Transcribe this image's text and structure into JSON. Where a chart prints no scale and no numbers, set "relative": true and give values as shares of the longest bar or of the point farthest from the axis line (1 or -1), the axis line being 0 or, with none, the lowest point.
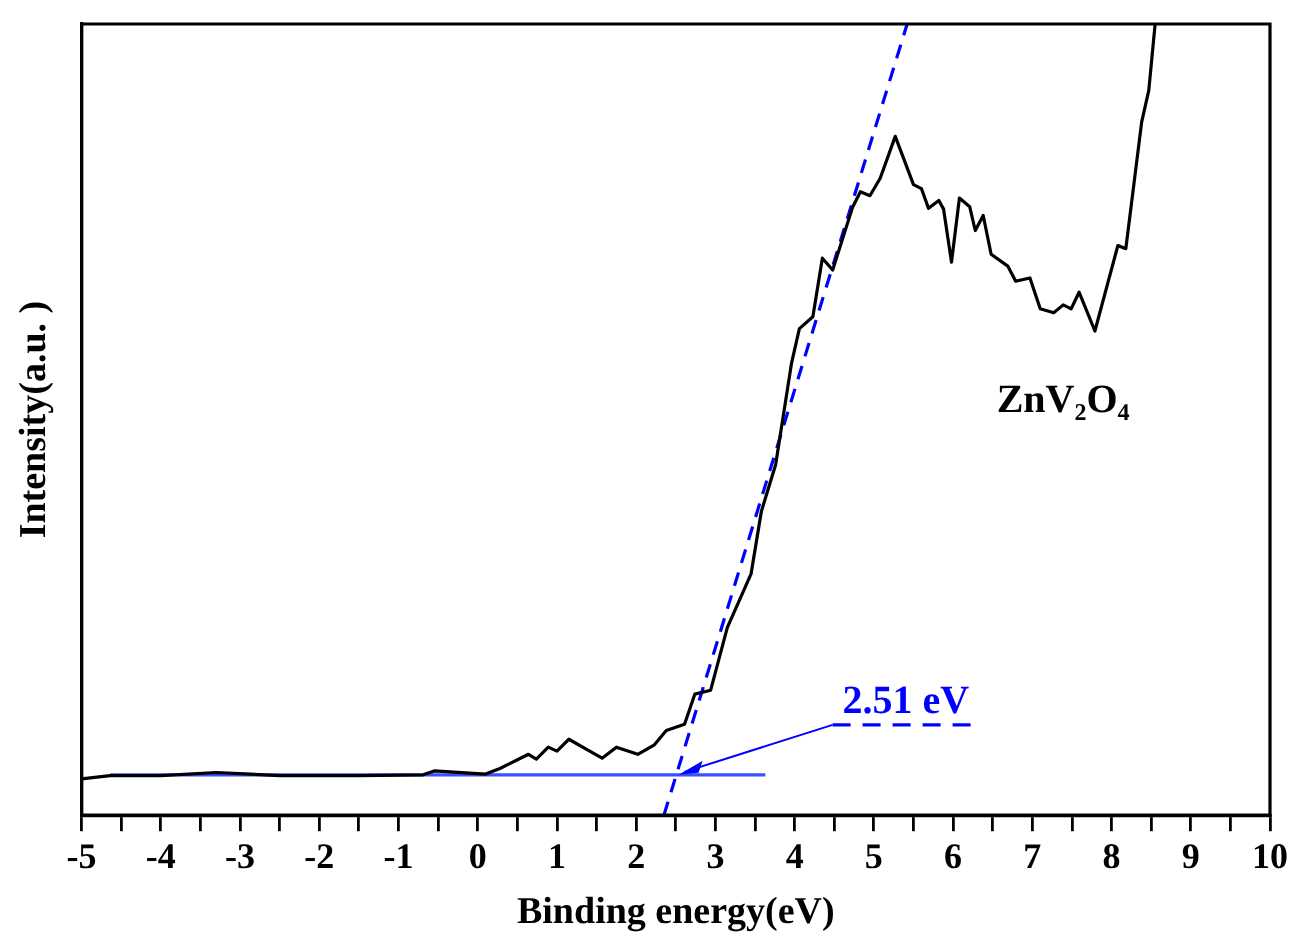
{
  "chart_data": {
    "type": "line",
    "xlabel": "Binding energy(eV)",
    "ylabel": "Intensity(a.u. )",
    "relative": true,
    "legend": false,
    "grid": false,
    "marker": "none",
    "xlim": [
      -5,
      10
    ],
    "xticks": [
      -5,
      {
        "value": -4.5,
        "label": null
      },
      -4,
      {
        "value": -3.5,
        "label": null
      },
      -3,
      {
        "value": -2.5,
        "label": null
      },
      -2,
      {
        "value": -1.5,
        "label": null
      },
      -1,
      {
        "value": -0.5,
        "label": null
      },
      0,
      {
        "value": 0.5,
        "label": null
      },
      1,
      {
        "value": 1.5,
        "label": null
      },
      2,
      {
        "value": 2.5,
        "label": null
      },
      3,
      {
        "value": 3.5,
        "label": null
      },
      4,
      {
        "value": 4.5,
        "label": null
      },
      5,
      {
        "value": 5.5,
        "label": null
      },
      6,
      {
        "value": 6.5,
        "label": null
      },
      7,
      {
        "value": 7.5,
        "label": null
      },
      8,
      {
        "value": 8.5,
        "label": null
      },
      9,
      {
        "value": 9.5,
        "label": null
      },
      10
    ],
    "series": [
      {
        "name": "ZnV₂O₄",
        "color": "#000000",
        "line_style": "solid",
        "x": [
          -5,
          -4.64,
          -4,
          -3.3,
          -2.5,
          -1.5,
          -0.69,
          -0.55,
          0.1,
          0.28,
          0.64,
          0.74,
          0.89,
          1.0,
          1.15,
          1.38,
          1.57,
          1.75,
          2.02,
          2.23,
          2.38,
          2.61,
          2.74,
          2.94,
          3.15,
          3.45,
          3.58,
          3.76,
          3.96,
          4.06,
          4.23,
          4.35,
          4.48,
          4.73,
          4.83,
          4.95,
          5.08,
          5.27,
          5.5,
          5.6,
          5.69,
          5.82,
          5.88,
          5.98,
          6.08,
          6.21,
          6.28,
          6.38,
          6.48,
          6.69,
          6.79,
          6.97,
          7.1,
          7.27,
          7.39,
          7.49,
          7.59,
          7.79,
          8.08,
          8.18,
          8.38,
          8.47,
          8.55
        ],
        "values": [
          0.046,
          0.05,
          0.05,
          0.054,
          0.05,
          0.05,
          0.051,
          0.056,
          0.052,
          0.059,
          0.077,
          0.071,
          0.086,
          0.081,
          0.096,
          0.083,
          0.072,
          0.086,
          0.077,
          0.089,
          0.107,
          0.115,
          0.153,
          0.158,
          0.237,
          0.305,
          0.384,
          0.443,
          0.571,
          0.615,
          0.63,
          0.704,
          0.689,
          0.768,
          0.788,
          0.783,
          0.805,
          0.858,
          0.797,
          0.792,
          0.767,
          0.777,
          0.766,
          0.699,
          0.78,
          0.769,
          0.739,
          0.758,
          0.709,
          0.694,
          0.675,
          0.679,
          0.64,
          0.635,
          0.645,
          0.64,
          0.661,
          0.612,
          0.72,
          0.716,
          0.876,
          0.916,
          1.0
        ]
      },
      {
        "type": "line",
        "color": "#0000ff",
        "line_style": "dashed",
        "x": [
          2.35,
          5.42
        ],
        "values": [
          0,
          1
        ]
      },
      {
        "type": "line",
        "color": "#3a50ff",
        "line_style": "solid",
        "x": [
          -4.64,
          3.63
        ],
        "values": [
          0.051,
          0.051
        ]
      }
    ],
    "annotations": [
      {
        "text": "2.51 eV",
        "x": 2.51,
        "y": 0.051
      }
    ]
  }
}
